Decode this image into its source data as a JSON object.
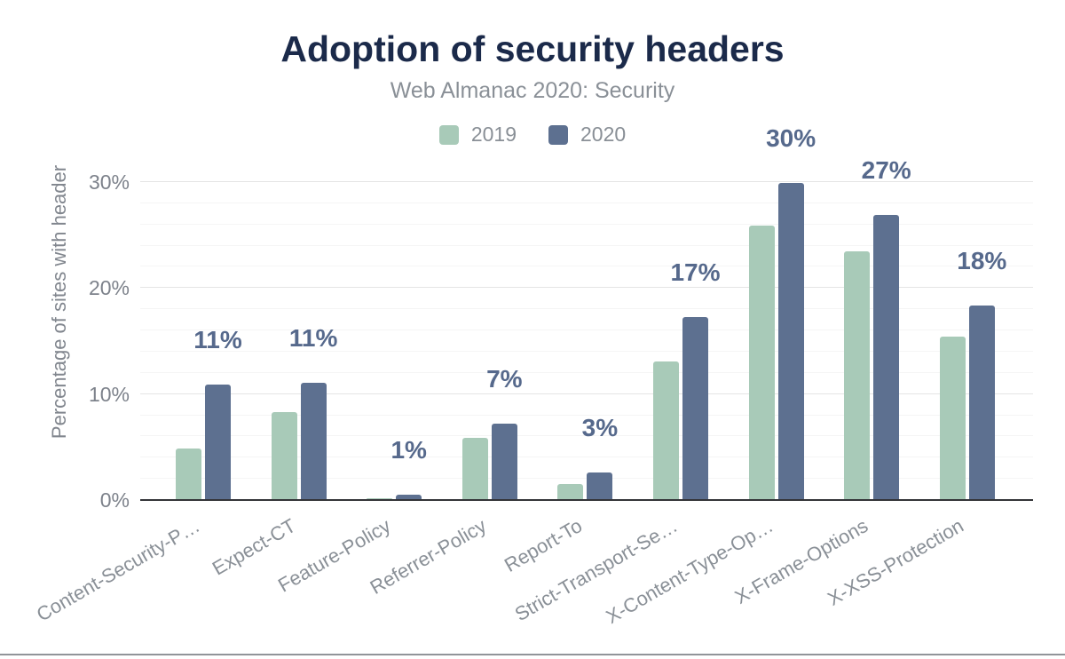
{
  "chart_data": {
    "type": "bar",
    "title": "Adoption of security headers",
    "subtitle": "Web Almanac 2020: Security",
    "ylabel": "Percentage of sites with header",
    "ylim": [
      0,
      30
    ],
    "grid": {
      "major_step": 10,
      "minor_step": 2,
      "grid_on": true
    },
    "legend_position": "top",
    "yticks": [
      {
        "value": 0,
        "label": "0%"
      },
      {
        "value": 10,
        "label": "10%"
      },
      {
        "value": 20,
        "label": "20%"
      },
      {
        "value": 30,
        "label": "30%"
      }
    ],
    "categories": [
      "Content-Security-P…",
      "Expect-CT",
      "Feature-Policy",
      "Referrer-Policy",
      "Report-To",
      "Strict-Transport-Se…",
      "X-Content-Type-Op…",
      "X-Frame-Options",
      "X-XSS-Protection"
    ],
    "series": [
      {
        "name": "2019",
        "color": "#a8cab8",
        "values": [
          4.8,
          8.2,
          0.1,
          5.8,
          1.4,
          13.0,
          25.8,
          23.4,
          15.3
        ]
      },
      {
        "name": "2020",
        "color": "#5d7090",
        "values": [
          10.8,
          11.0,
          0.4,
          7.1,
          2.5,
          17.2,
          29.8,
          26.8,
          18.3
        ]
      }
    ],
    "bar_labels": [
      "11%",
      "11%",
      "1%",
      "7%",
      "3%",
      "17%",
      "30%",
      "27%",
      "18%"
    ],
    "colors": {
      "title": "#1b2a4a",
      "subtitle": "#8a9097",
      "tick_text": "#7d828b",
      "axis_line": "#333438",
      "major_grid": "#e4e4e4",
      "minor_grid": "#f5f5f5",
      "data_label": "#56698c",
      "bottom_divider": "#919499"
    }
  }
}
